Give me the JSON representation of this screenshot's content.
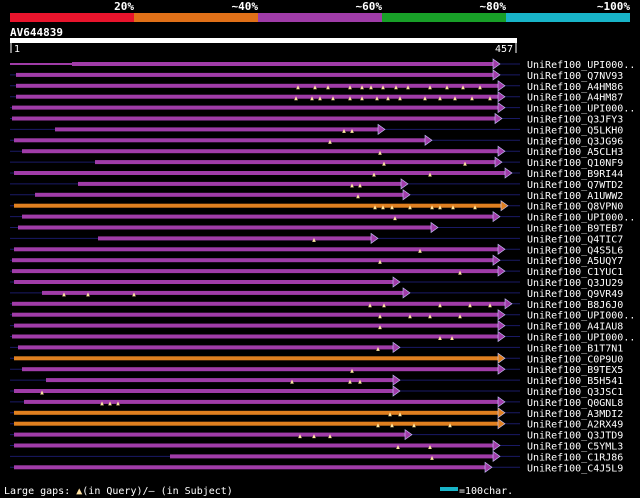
{
  "header": {
    "pct_labels": [
      "20%",
      "~40%",
      "~60%",
      "~80%",
      "~100%"
    ],
    "scale_colors": [
      "#e8142c",
      "#e07018",
      "#a03ca8",
      "#18a028",
      "#18b4c8"
    ],
    "query_id": "AV644839",
    "ruler_start": "1",
    "ruler_end": "457"
  },
  "footer": {
    "gaps_label": "Large gaps: ",
    "gap_query_marker": "▲",
    "gap_query_text": "(in Query)/",
    "gap_subject_marker": "—",
    "gap_subject_text": " (in Subject)",
    "scale_legend": "=100char."
  },
  "hits": [
    {
      "label": "UniRef100_UPI000..",
      "color": "magenta"
    },
    {
      "label": "UniRef100_Q7NV93",
      "color": "magenta"
    },
    {
      "label": "UniRef100_A4HM86",
      "color": "magenta"
    },
    {
      "label": "UniRef100_A4HM87",
      "color": "magenta"
    },
    {
      "label": "UniRef100_UPI000..",
      "color": "magenta"
    },
    {
      "label": "UniRef100_Q3JFY3",
      "color": "magenta"
    },
    {
      "label": "UniRef100_Q5LKH0",
      "color": "magenta"
    },
    {
      "label": "UniRef100_Q3JG96",
      "color": "magenta"
    },
    {
      "label": "UniRef100_A5CLH3",
      "color": "magenta"
    },
    {
      "label": "UniRef100_Q10NF9",
      "color": "magenta"
    },
    {
      "label": "UniRef100_B9RI44",
      "color": "magenta"
    },
    {
      "label": "UniRef100_Q7WTD2",
      "color": "magenta"
    },
    {
      "label": "UniRef100_A1UWW2",
      "color": "magenta"
    },
    {
      "label": "UniRef100_Q8VPN0",
      "color": "orange"
    },
    {
      "label": "UniRef100_UPI000..",
      "color": "magenta"
    },
    {
      "label": "UniRef100_B9TEB7",
      "color": "magenta"
    },
    {
      "label": "UniRef100_Q4TIC7",
      "color": "magenta"
    },
    {
      "label": "UniRef100_Q4S5L6",
      "color": "magenta"
    },
    {
      "label": "UniRef100_A5UQY7",
      "color": "magenta"
    },
    {
      "label": "UniRef100_C1YUC1",
      "color": "magenta"
    },
    {
      "label": "UniRef100_Q3JU29",
      "color": "magenta"
    },
    {
      "label": "UniRef100_Q9VR49",
      "color": "magenta"
    },
    {
      "label": "UniRef100_B8J6J0",
      "color": "magenta"
    },
    {
      "label": "UniRef100_UPI000..",
      "color": "magenta"
    },
    {
      "label": "UniRef100_A4IAU8",
      "color": "magenta"
    },
    {
      "label": "UniRef100_UPI000..",
      "color": "magenta"
    },
    {
      "label": "UniRef100_B1T7N1",
      "color": "magenta"
    },
    {
      "label": "UniRef100_C0P9U0",
      "color": "orange"
    },
    {
      "label": "UniRef100_B9TEX5",
      "color": "magenta"
    },
    {
      "label": "UniRef100_B5H541",
      "color": "magenta"
    },
    {
      "label": "UniRef100_Q3JSC1",
      "color": "magenta"
    },
    {
      "label": "UniRef100_Q0GNL8",
      "color": "magenta"
    },
    {
      "label": "UniRef100_A3MDI2",
      "color": "orange"
    },
    {
      "label": "UniRef100_A2RX49",
      "color": "orange"
    },
    {
      "label": "UniRef100_Q3JTD9",
      "color": "magenta"
    },
    {
      "label": "UniRef100_C5YML3",
      "color": "magenta"
    },
    {
      "label": "UniRef100_C1RJ86",
      "color": "magenta"
    },
    {
      "label": "UniRef100_C4J5L9",
      "color": "magenta"
    }
  ]
}
